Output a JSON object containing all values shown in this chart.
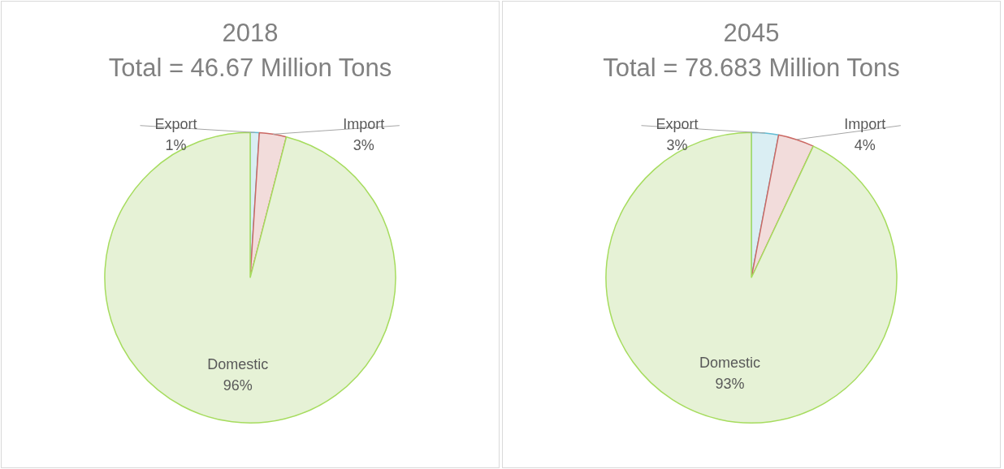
{
  "chart_data": [
    {
      "type": "pie",
      "title": "2018",
      "subtitle": "Total = 46.67 Million Tons",
      "categories": [
        "Export",
        "Import",
        "Domestic"
      ],
      "values": [
        1,
        3,
        96
      ],
      "value_labels": [
        "1%",
        "3%",
        "96%"
      ],
      "colors": [
        "#daeef3",
        "#f2dcdb",
        "#e6f2d6"
      ],
      "legend": false
    },
    {
      "type": "pie",
      "title": "2045",
      "subtitle": "Total = 78.683 Million Tons",
      "categories": [
        "Export",
        "Import",
        "Domestic"
      ],
      "values": [
        3,
        4,
        93
      ],
      "value_labels": [
        "3%",
        "4%",
        "93%"
      ],
      "colors": [
        "#daeef3",
        "#f2dcdb",
        "#e6f2d6"
      ],
      "legend": false
    }
  ]
}
